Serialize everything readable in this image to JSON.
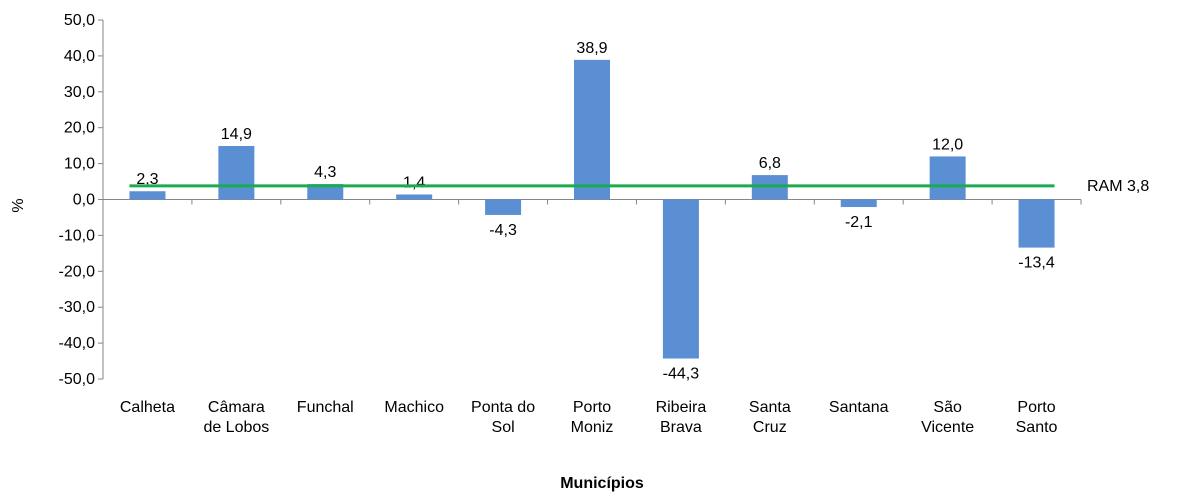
{
  "chart_data": {
    "type": "bar",
    "categories": [
      [
        "Calheta"
      ],
      [
        "Câmara",
        "de Lobos"
      ],
      [
        "Funchal"
      ],
      [
        "Machico"
      ],
      [
        "Ponta do",
        "Sol"
      ],
      [
        "Porto",
        "Moniz"
      ],
      [
        "Ribeira",
        "Brava"
      ],
      [
        "Santa",
        "Cruz"
      ],
      [
        "Santana"
      ],
      [
        "São",
        "Vicente"
      ],
      [
        "Porto",
        "Santo"
      ]
    ],
    "values": [
      2.3,
      14.9,
      4.3,
      1.4,
      -4.3,
      38.9,
      -44.3,
      6.8,
      -2.1,
      12.0,
      -13.4
    ],
    "value_labels": [
      "2,3",
      "14,9",
      "4,3",
      "1,4",
      "-4,3",
      "38,9",
      "-44,3",
      "6,8",
      "-2,1",
      "12,0",
      "-13,4"
    ],
    "ylim": [
      -50,
      50
    ],
    "yticks": [
      50,
      40,
      30,
      20,
      10,
      0,
      -10,
      -20,
      -30,
      -40,
      -50
    ],
    "ytick_labels": [
      "50,0",
      "40,0",
      "30,0",
      "20,0",
      "10,0",
      "0,0",
      "-10,0",
      "-20,0",
      "-30,0",
      "-40,0",
      "-50,0"
    ],
    "ylabel": "%",
    "xlabel": "Municípios",
    "reference_line": {
      "name": "RAM",
      "value": 3.8,
      "label": "3,8"
    },
    "bar_color": "#5b8fd4",
    "line_color": "#1aab4e",
    "grid": false,
    "legend": "none"
  }
}
